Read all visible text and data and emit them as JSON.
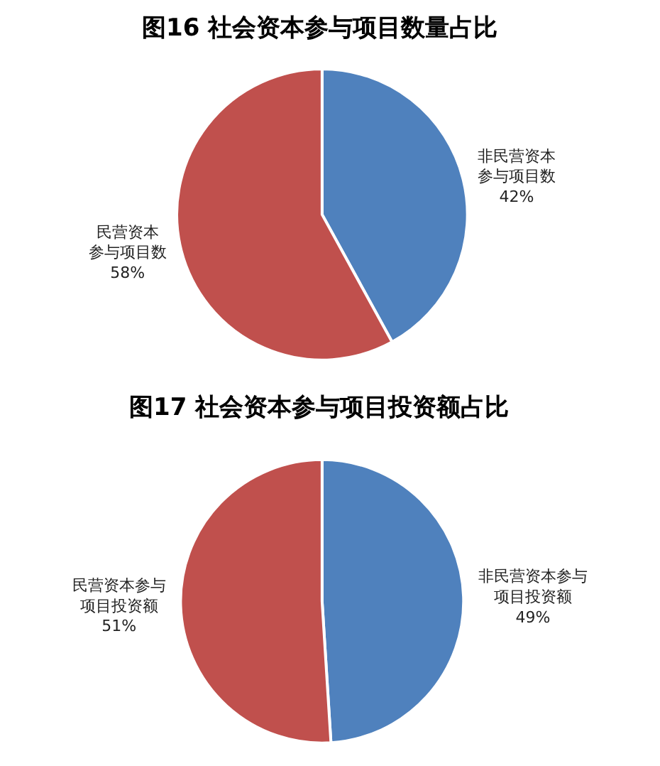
{
  "chart_data": [
    {
      "type": "pie",
      "title": "图16 社会资本参与项目数量占比",
      "categories": [
        "非民营资本参与项目数",
        "民营资本参与项目数"
      ],
      "values": [
        42,
        58
      ],
      "value_labels": [
        "42%",
        "58%"
      ],
      "colors": [
        "#4f81bd",
        "#c0504d"
      ],
      "legend": false
    },
    {
      "type": "pie",
      "title": "图17 社会资本参与项目投资额占比",
      "categories": [
        "非民营资本参与项目投资额",
        "民营资本参与项目投资额"
      ],
      "values": [
        49,
        51
      ],
      "value_labels": [
        "49%",
        "51%"
      ],
      "colors": [
        "#4f81bd",
        "#c0504d"
      ],
      "legend": false
    }
  ]
}
